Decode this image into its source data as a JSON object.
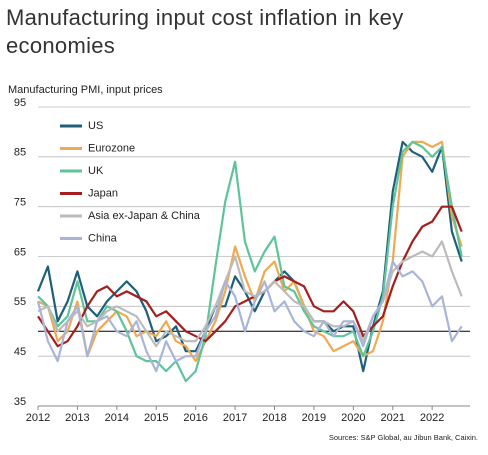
{
  "chart_data": {
    "type": "line",
    "title": "Manufacturing input cost inflation in key economies",
    "subtitle": "Manufacturing PMI, input prices",
    "source": "Sources: S&P Global, au Jibun Bank, Caixin.",
    "x": [
      2012,
      2012.25,
      2012.5,
      2012.75,
      2013,
      2013.25,
      2013.5,
      2013.75,
      2014,
      2014.25,
      2014.5,
      2014.75,
      2015,
      2015.25,
      2015.5,
      2015.75,
      2016,
      2016.25,
      2016.5,
      2016.75,
      2017,
      2017.25,
      2017.5,
      2017.75,
      2018,
      2018.25,
      2018.5,
      2018.75,
      2019,
      2019.25,
      2019.5,
      2019.75,
      2020,
      2020.25,
      2020.5,
      2020.75,
      2021,
      2021.25,
      2021.5,
      2021.75,
      2022,
      2022.25,
      2022.5,
      2022.75
    ],
    "xlim": [
      2012,
      2022.96
    ],
    "xticks": [
      2012,
      2013,
      2014,
      2015,
      2016,
      2017,
      2018,
      2019,
      2020,
      2021,
      2022
    ],
    "ylim": [
      35,
      95
    ],
    "yticks": [
      35,
      45,
      55,
      65,
      75,
      85,
      95
    ],
    "grid": true,
    "reference_line": 50,
    "legend": "top-left",
    "series": [
      {
        "name": "US",
        "color": "#1f5f7a",
        "values": [
          58,
          63,
          52,
          56,
          62,
          55,
          53,
          56,
          58,
          60,
          58,
          54,
          48,
          49,
          51,
          46,
          46,
          50,
          55,
          55,
          61,
          58,
          54,
          58,
          60,
          62,
          60,
          55,
          52,
          52,
          50,
          51,
          51,
          42,
          51,
          58,
          78,
          88,
          86,
          85,
          82,
          87,
          70,
          64
        ]
      },
      {
        "name": "Eurozone",
        "color": "#f0a950",
        "values": [
          56,
          55,
          48,
          50,
          56,
          45,
          50,
          52,
          54,
          53,
          49,
          50,
          49,
          52,
          48,
          47,
          44,
          48,
          52,
          58,
          67,
          61,
          56,
          62,
          64,
          58,
          60,
          55,
          50,
          49,
          46,
          47,
          48,
          45,
          46,
          52,
          64,
          85,
          88,
          88,
          87,
          88,
          73,
          67
        ]
      },
      {
        "name": "UK",
        "color": "#5fc49a",
        "values": [
          57,
          55,
          51,
          53,
          60,
          52,
          52,
          55,
          54,
          50,
          45,
          44,
          44,
          42,
          44,
          40,
          42,
          49,
          63,
          76,
          84,
          68,
          62,
          66,
          69,
          59,
          58,
          54,
          51,
          50,
          49,
          49,
          50,
          45,
          50,
          57,
          75,
          86,
          88,
          87,
          85,
          87,
          75,
          65
        ]
      },
      {
        "name": "Japan",
        "color": "#a51d1d",
        "values": [
          53,
          50,
          47,
          48,
          51,
          55,
          58,
          59,
          57,
          58,
          57,
          56,
          53,
          54,
          52,
          50,
          49,
          48,
          50,
          52,
          55,
          56,
          57,
          58,
          60,
          61,
          60,
          59,
          55,
          54,
          54,
          56,
          54,
          49,
          51,
          53,
          59,
          64,
          68,
          71,
          72,
          75,
          75,
          70
        ]
      },
      {
        "name": "Asia ex-Japan & China",
        "color": "#bbbbbb",
        "values": [
          54,
          55,
          50,
          52,
          54,
          51,
          52,
          54,
          55,
          54,
          53,
          50,
          47,
          50,
          49,
          48,
          48,
          51,
          55,
          60,
          65,
          58,
          57,
          58,
          60,
          58,
          56,
          55,
          52,
          52,
          51,
          51,
          52,
          48,
          53,
          56,
          62,
          64,
          65,
          66,
          65,
          68,
          62,
          57
        ]
      },
      {
        "name": "China",
        "color": "#a9b4d8",
        "values": [
          56,
          48,
          44,
          52,
          55,
          45,
          52,
          53,
          50,
          49,
          52,
          46,
          42,
          48,
          44,
          45,
          45,
          50,
          53,
          60,
          57,
          50,
          56,
          60,
          54,
          56,
          52,
          50,
          49,
          52,
          49,
          52,
          52,
          47,
          53,
          56,
          64,
          61,
          62,
          60,
          55,
          57,
          48,
          51
        ]
      }
    ]
  }
}
